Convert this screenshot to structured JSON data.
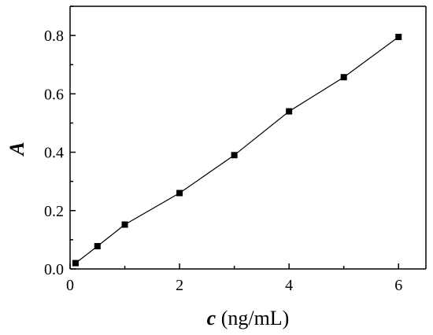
{
  "chart_data": {
    "type": "line",
    "title": "",
    "xlabel_var": "c",
    "xlabel_unit": " (ng/mL)",
    "ylabel": "A",
    "xlim": [
      0,
      6.5
    ],
    "ylim": [
      0,
      0.9
    ],
    "xticks": [
      0,
      2,
      4,
      6
    ],
    "yticks": [
      0.0,
      0.2,
      0.4,
      0.6,
      0.8
    ],
    "ytick_labels": [
      "0.0",
      "0.2",
      "0.4",
      "0.6",
      "0.8"
    ],
    "xtick_labels": [
      "0",
      "2",
      "4",
      "6"
    ],
    "grid": false,
    "legend": "none",
    "series": [
      {
        "x": [
          0.1,
          0.5,
          1,
          2,
          3,
          4,
          5,
          6
        ],
        "y": [
          0.02,
          0.078,
          0.152,
          0.26,
          0.39,
          0.54,
          0.657,
          0.795
        ],
        "marker": "square",
        "color": "#000000"
      }
    ]
  }
}
